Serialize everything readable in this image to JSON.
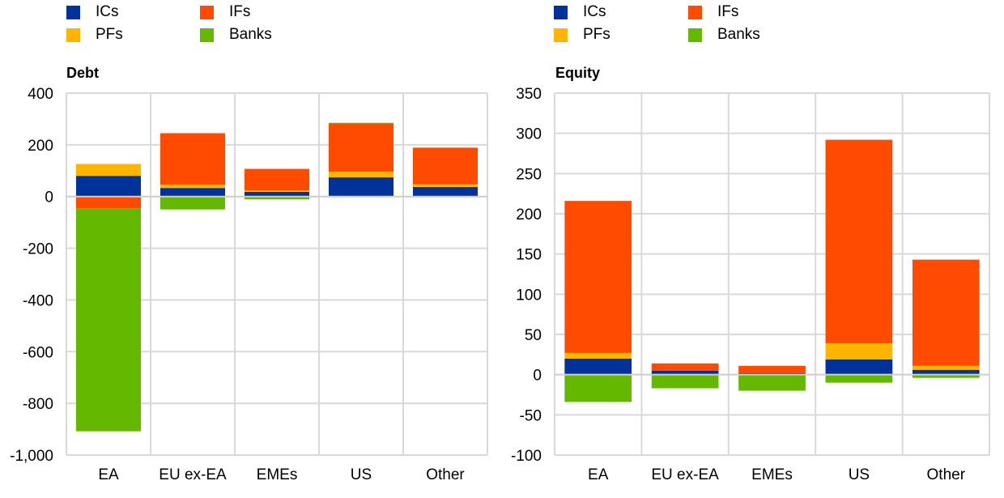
{
  "legend": [
    {
      "label": "ICs",
      "color": "#003299"
    },
    {
      "label": "IFs",
      "color": "#FF4B00"
    },
    {
      "label": "PFs",
      "color": "#FFB400"
    },
    {
      "label": "Banks",
      "color": "#65B800"
    }
  ],
  "chart_data": [
    {
      "type": "bar",
      "stacked": true,
      "title": "Debt",
      "xlabel": "",
      "ylabel": "",
      "categories": [
        "EA",
        "EU ex-EA",
        "EMEs",
        "US",
        "Other"
      ],
      "ylim": [
        -1000,
        400
      ],
      "yticks": [
        400,
        200,
        0,
        -200,
        -400,
        -600,
        -800,
        -1000
      ],
      "ytick_labels": [
        "400",
        "200",
        "0",
        "-200",
        "-400",
        "-600",
        "-800",
        "-1,000"
      ],
      "grid": true,
      "legend_position": "top",
      "series": [
        {
          "name": "ICs",
          "color": "#003299",
          "values": [
            80,
            33,
            18,
            74,
            37
          ]
        },
        {
          "name": "PFs",
          "color": "#FFB400",
          "values": [
            46,
            13,
            6,
            22,
            10
          ]
        },
        {
          "name": "IFs",
          "color": "#FF4B00",
          "values": [
            -45,
            199,
            83,
            188,
            142
          ]
        },
        {
          "name": "Banks",
          "color": "#65B800",
          "values": [
            -863,
            -50,
            -11,
            1,
            -2
          ]
        }
      ]
    },
    {
      "type": "bar",
      "stacked": true,
      "title": "Equity",
      "xlabel": "",
      "ylabel": "",
      "categories": [
        "EA",
        "EU ex-EA",
        "EMEs",
        "US",
        "Other"
      ],
      "ylim": [
        -100,
        350
      ],
      "yticks": [
        350,
        300,
        250,
        200,
        150,
        100,
        50,
        0,
        -50,
        -100
      ],
      "ytick_labels": [
        "350",
        "300",
        "250",
        "200",
        "150",
        "100",
        "50",
        "0",
        "-50",
        "-100"
      ],
      "grid": true,
      "legend_position": "top",
      "series": [
        {
          "name": "ICs",
          "color": "#003299",
          "values": [
            20,
            5,
            2,
            19,
            6
          ]
        },
        {
          "name": "PFs",
          "color": "#FFB400",
          "values": [
            7,
            0,
            0,
            20,
            5
          ]
        },
        {
          "name": "IFs",
          "color": "#FF4B00",
          "values": [
            189,
            9,
            9,
            253,
            132
          ]
        },
        {
          "name": "Banks",
          "color": "#65B800",
          "values": [
            -34,
            -17,
            -20,
            -10,
            -4
          ]
        }
      ]
    }
  ]
}
